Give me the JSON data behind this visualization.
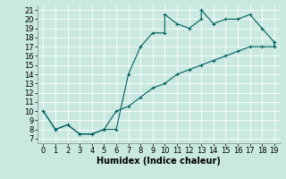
{
  "title": "",
  "xlabel": "Humidex (Indice chaleur)",
  "bg_color": "#c8e8e0",
  "grid_color": "#ffffff",
  "line_color": "#006060",
  "marker": "+",
  "xlim": [
    -0.5,
    19.5
  ],
  "ylim": [
    6.5,
    21.5
  ],
  "xticks": [
    0,
    1,
    2,
    3,
    4,
    5,
    6,
    7,
    8,
    9,
    10,
    11,
    12,
    13,
    14,
    15,
    16,
    17,
    18,
    19
  ],
  "yticks": [
    7,
    8,
    9,
    10,
    11,
    12,
    13,
    14,
    15,
    16,
    17,
    18,
    19,
    20,
    21
  ],
  "curve1_x": [
    0,
    1,
    2,
    3,
    4,
    5,
    6,
    7,
    8,
    9,
    10,
    10,
    11,
    12,
    13,
    13,
    14,
    15,
    16,
    17,
    18,
    19,
    19
  ],
  "curve1_y": [
    10,
    8,
    8.5,
    7.5,
    7.5,
    8,
    8,
    14,
    17,
    18.5,
    18.5,
    20.5,
    19.5,
    19,
    20,
    21,
    19.5,
    20,
    20,
    20.5,
    19,
    17.5,
    17
  ],
  "curve2_x": [
    0,
    1,
    2,
    3,
    4,
    5,
    6,
    7,
    8,
    9,
    10,
    11,
    12,
    13,
    14,
    15,
    16,
    17,
    18,
    19
  ],
  "curve2_y": [
    10,
    8,
    8.5,
    7.5,
    7.5,
    8,
    10,
    10.5,
    11.5,
    12.5,
    13,
    14,
    14.5,
    15,
    15.5,
    16,
    16.5,
    17,
    17,
    17
  ],
  "xlabel_fontsize": 7,
  "tick_fontsize": 6,
  "linewidth": 0.8,
  "markersize": 3,
  "markeredgewidth": 0.7
}
